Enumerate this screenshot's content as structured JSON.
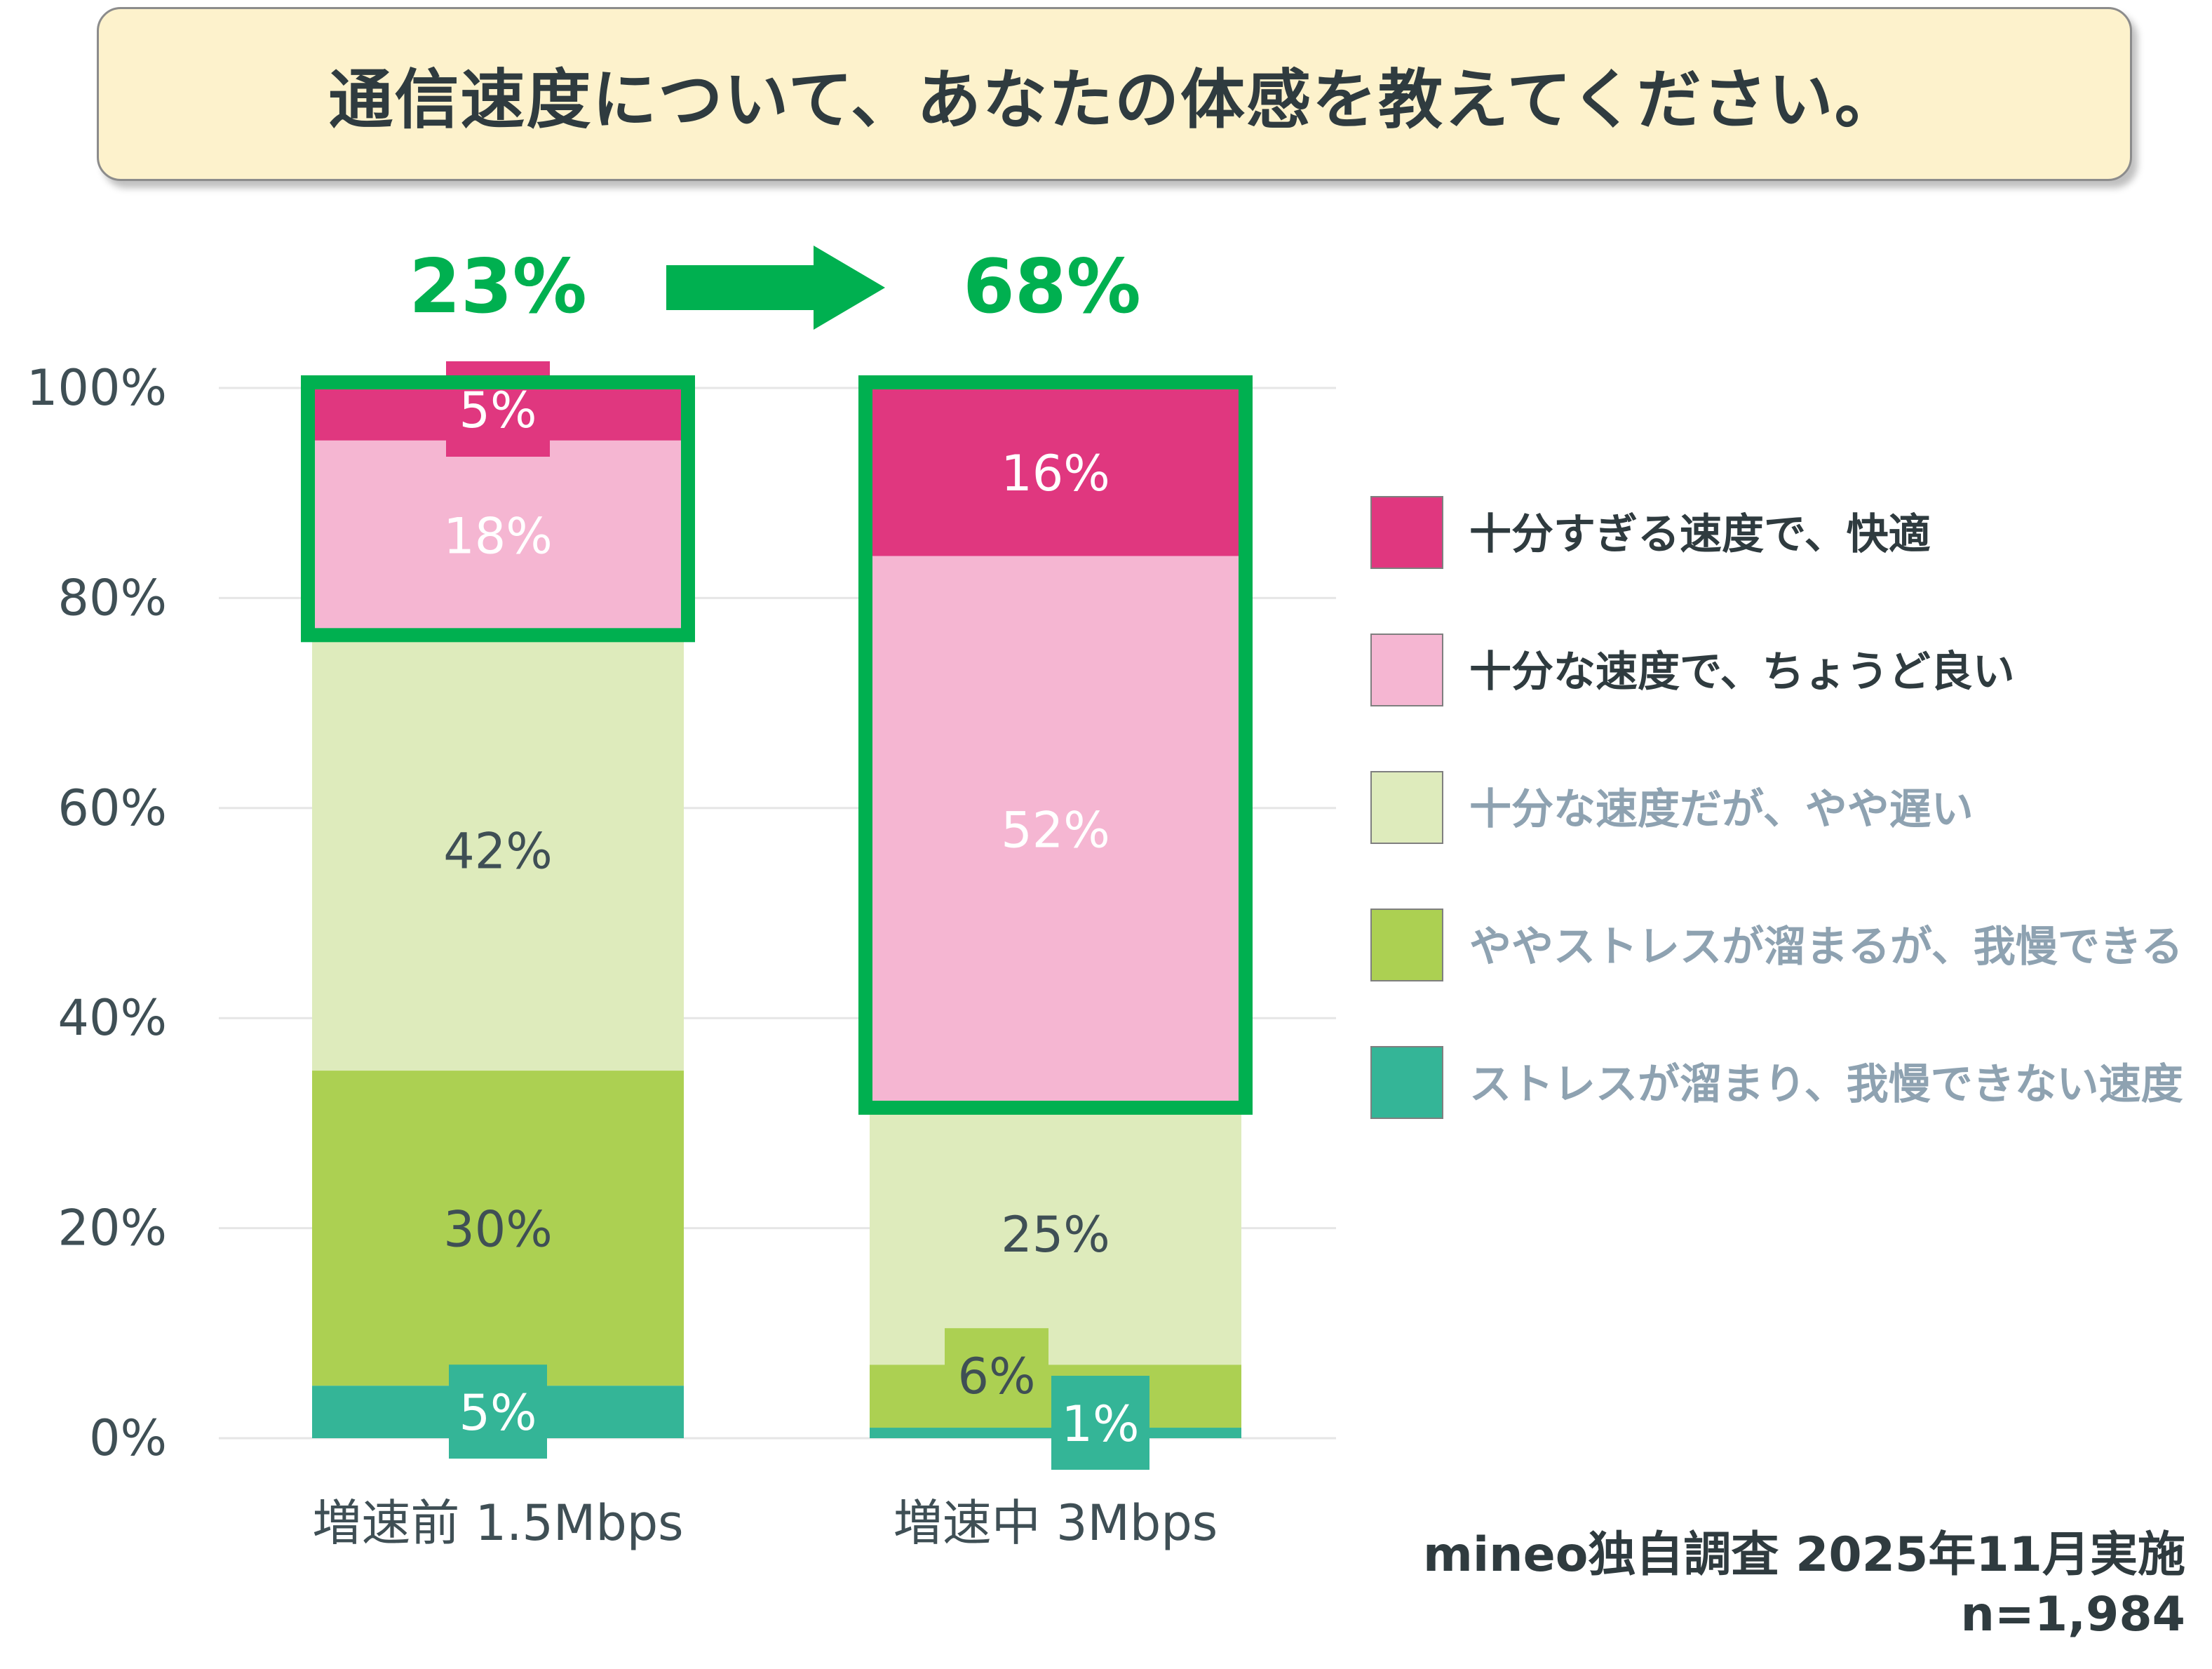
{
  "title": "通信速度について、あなたの体感を教えてください。",
  "highlight": {
    "before": "23%",
    "after": "68%"
  },
  "source": {
    "line1": "mineo独自調査 2025年11月実施",
    "line2": "n=1,984"
  },
  "colors": {
    "accent_green": "#00b050",
    "series": [
      "#34b597",
      "#acd052",
      "#deebbc",
      "#f5b6d2",
      "#e0377f"
    ],
    "legend_text_top": "#2f3b3f",
    "legend_text_muted": "#8ea2b1",
    "axis_text": "#3f4f55"
  },
  "chart_data": {
    "type": "bar",
    "stacked": true,
    "categories": [
      "増速前 1.5Mbps",
      "増速中 3Mbps"
    ],
    "ylim": [
      0,
      100
    ],
    "yticks": [
      "0%",
      "20%",
      "40%",
      "60%",
      "80%",
      "100%"
    ],
    "grid": true,
    "legend_position": "right",
    "series": [
      {
        "name": "ストレスが溜まり、我慢できない速度",
        "values": [
          5,
          1
        ],
        "labels": [
          "5%",
          "1%"
        ]
      },
      {
        "name": "ややストレスが溜まるが、我慢できる",
        "values": [
          30,
          6
        ],
        "labels": [
          "30%",
          "6%"
        ]
      },
      {
        "name": "十分な速度だが、やや遅い",
        "values": [
          42,
          25
        ],
        "labels": [
          "42%",
          "25%"
        ]
      },
      {
        "name": "十分な速度で、ちょうど良い",
        "values": [
          18,
          52
        ],
        "labels": [
          "18%",
          "52%"
        ]
      },
      {
        "name": "十分すぎる速度で、快適",
        "values": [
          5,
          16
        ],
        "labels": [
          "5%",
          "16%"
        ]
      }
    ]
  }
}
